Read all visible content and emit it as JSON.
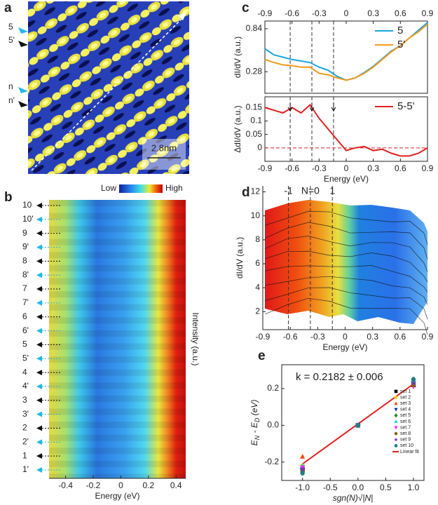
{
  "panel_labels": [
    "a",
    "b",
    "c",
    "d",
    "e"
  ],
  "image_a": {
    "arrow_labels": [
      "5",
      "5'",
      "n",
      "n'"
    ],
    "scale_bar": "2.8nm"
  },
  "chart_data": [
    {
      "type": "heatmap",
      "xlabel": "Energy (eV)",
      "zlabel": "Intensity (a.u.)",
      "colorbar_labels": [
        "Low",
        "High"
      ],
      "rows": [
        "10",
        "10'",
        "9",
        "9'",
        "8",
        "8'",
        "7",
        "7'",
        "6",
        "6'",
        "5",
        "5'",
        "4",
        "4'",
        "3",
        "3'",
        "2",
        "2'",
        "1",
        "1'"
      ],
      "xlim": [
        -0.52,
        0.47
      ],
      "xticks": [
        -0.4,
        -0.2,
        0,
        0.2,
        0.4
      ]
    },
    {
      "type": "line",
      "xaxis": "top",
      "ylabel": "dI/dV (a.u.)",
      "x": [
        -0.9,
        -0.8,
        -0.7,
        -0.6,
        -0.5,
        -0.4,
        -0.3,
        -0.2,
        -0.1,
        0,
        0.1,
        0.2,
        0.3,
        0.4,
        0.5,
        0.6,
        0.7,
        0.8,
        0.9
      ],
      "series": [
        {
          "name": "5",
          "color": "#1ba6e0",
          "values": [
            0.58,
            0.5,
            0.47,
            0.44,
            0.42,
            0.4,
            0.34,
            0.3,
            0.22,
            0.17,
            0.2,
            0.27,
            0.35,
            0.45,
            0.55,
            0.62,
            0.72,
            0.82,
            0.92
          ]
        },
        {
          "name": "5'",
          "color": "#f39a1e",
          "values": [
            0.44,
            0.4,
            0.37,
            0.36,
            0.34,
            0.34,
            0.26,
            0.24,
            0.2,
            0.17,
            0.2,
            0.26,
            0.34,
            0.44,
            0.54,
            0.62,
            0.72,
            0.8,
            0.9
          ]
        }
      ],
      "xlim": [
        -0.9,
        0.9
      ],
      "xticks": [
        -0.9,
        -0.6,
        -0.3,
        0,
        0.3,
        0.6,
        0.9
      ],
      "ylim": [
        0,
        0.94
      ],
      "yticks": [
        0.28,
        0.84
      ],
      "vlines": [
        -0.62,
        -0.38,
        -0.14
      ]
    },
    {
      "type": "line",
      "xlabel": "Energy (eV)",
      "ylabel": "ΔdI/dV (a.u.)",
      "x": [
        -0.9,
        -0.8,
        -0.7,
        -0.6,
        -0.5,
        -0.4,
        -0.3,
        -0.2,
        -0.1,
        0,
        0.1,
        0.2,
        0.3,
        0.4,
        0.5,
        0.6,
        0.7,
        0.8,
        0.9
      ],
      "series": [
        {
          "name": "5-5'",
          "color": "#e02020",
          "values": [
            0.15,
            0.14,
            0.13,
            0.15,
            0.13,
            0.16,
            0.11,
            0.07,
            0.03,
            -0.01,
            0,
            0.005,
            -0.01,
            -0.005,
            -0.02,
            -0.03,
            -0.03,
            -0.02,
            0
          ]
        }
      ],
      "xlim": [
        -0.9,
        0.9
      ],
      "xticks": [
        -0.9,
        -0.6,
        -0.3,
        0,
        0.3,
        0.6,
        0.9
      ],
      "ylim": [
        -0.05,
        0.19
      ],
      "yticks": [
        0,
        0.05,
        0.1,
        0.15
      ],
      "vlines": [
        -0.62,
        -0.38,
        -0.14
      ],
      "hline": 0
    },
    {
      "type": "surface",
      "xlabel": "Energy (eV)",
      "ylabel": "dI/dV (a.u.)",
      "vlines": [
        -0.62,
        -0.38,
        -0.14
      ],
      "vline_labels": [
        "-1",
        "N=0",
        "1"
      ],
      "xlim": [
        -0.9,
        0.9
      ],
      "xticks": [
        -0.9,
        -0.6,
        -0.3,
        0,
        0.3,
        0.6,
        0.9
      ],
      "ylim": [
        0.5,
        12.5
      ],
      "yticks": [
        2,
        4,
        6,
        8,
        10,
        12
      ]
    },
    {
      "type": "scatter",
      "xlabel": "sgn(N)√|N|",
      "ylabel": [
        "E",
        "N",
        " - E",
        "D",
        " (eV)"
      ],
      "annotation": "k = 0.2182 ± 0.006",
      "x": [
        -1,
        0,
        1
      ],
      "series": [
        {
          "name": "set 1",
          "color": "#000000",
          "marker": "square",
          "values": [
            -0.24,
            0,
            0.22
          ]
        },
        {
          "name": "set 2",
          "color": "#e8d000",
          "marker": "circle",
          "values": [
            -0.22,
            0,
            0.22
          ]
        },
        {
          "name": "set 3",
          "color": "#ff4000",
          "marker": "triangle",
          "values": [
            -0.17,
            0,
            0.23
          ]
        },
        {
          "name": "set 4",
          "color": "#1020c0",
          "marker": "triangle-down",
          "values": [
            -0.23,
            0,
            0.23
          ]
        },
        {
          "name": "set 5",
          "color": "#1a8a2a",
          "marker": "diamond",
          "values": [
            -0.24,
            0,
            0.25
          ]
        },
        {
          "name": "set 6",
          "color": "#20d0e0",
          "marker": "triangle",
          "values": [
            -0.22,
            0,
            0.24
          ]
        },
        {
          "name": "set 7",
          "color": "#ff20ff",
          "marker": "triangle-down",
          "values": [
            -0.23,
            0,
            0.21
          ]
        },
        {
          "name": "set 8",
          "color": "#8a6a10",
          "marker": "circle",
          "values": [
            -0.25,
            0,
            0.22
          ]
        },
        {
          "name": "set 9",
          "color": "#7a30c0",
          "marker": "star",
          "values": [
            -0.24,
            0,
            0.23
          ]
        },
        {
          "name": "set 10",
          "color": "#208080",
          "marker": "hexagon",
          "values": [
            -0.26,
            0,
            0.25
          ]
        }
      ],
      "fit": {
        "name": "Linear fit",
        "color": "#e02020",
        "x": [
          -1,
          1
        ],
        "values": [
          -0.21,
          0.225
        ]
      },
      "xlim": [
        -1.375,
        1.19
      ],
      "xticks": [
        {
          "value": -1,
          "label": "-1.0"
        },
        {
          "value": -0.5,
          "label": "-0.5"
        },
        {
          "value": 0,
          "label": "0.0"
        },
        {
          "value": 0.5,
          "label": "0.5"
        },
        {
          "value": 1,
          "label": "1.0"
        }
      ],
      "ylim": [
        -0.3,
        0.33
      ],
      "yticks": [
        {
          "value": -0.2,
          "label": "-0.2"
        },
        {
          "value": 0,
          "label": "0.0"
        },
        {
          "value": 0.2,
          "label": "0.2"
        }
      ]
    }
  ]
}
